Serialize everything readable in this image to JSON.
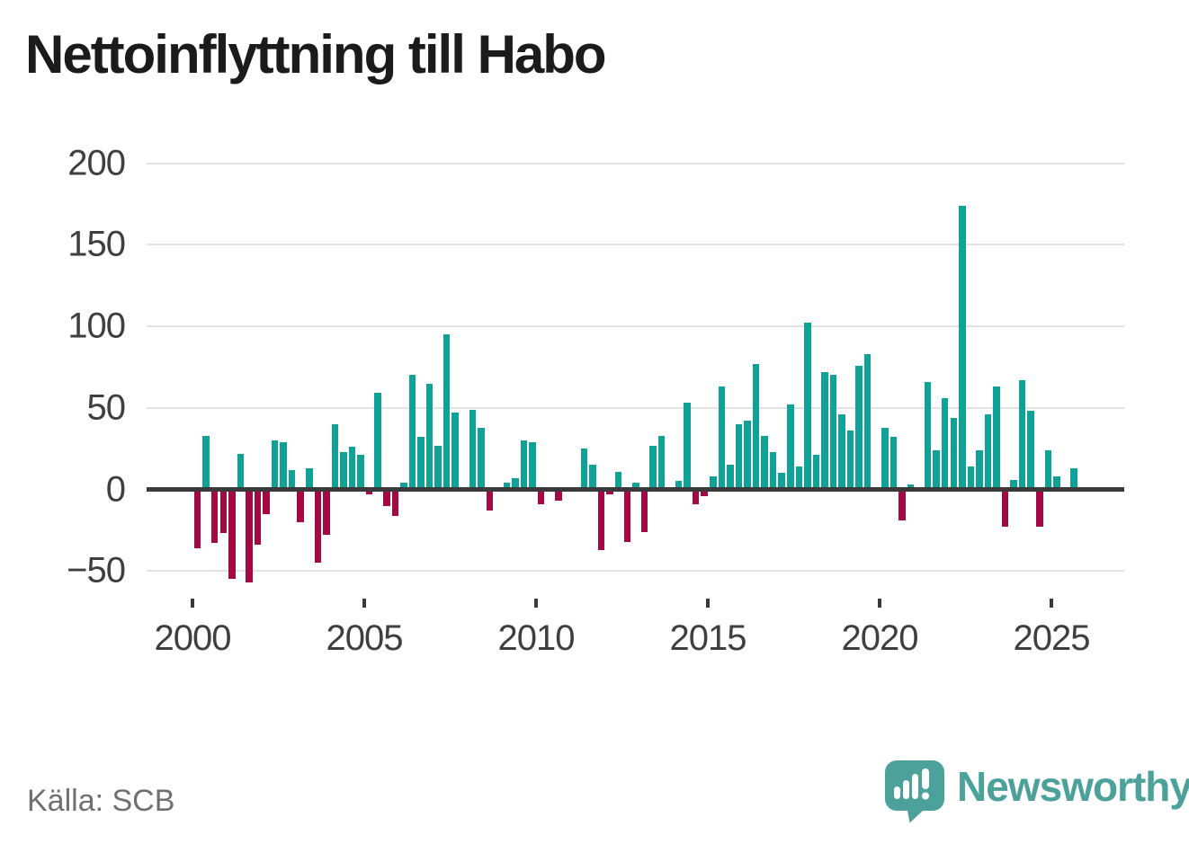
{
  "title": "Nettoinflyttning till Habo",
  "footer": {
    "source": "Källa: SCB",
    "brand": "Newsworthy"
  },
  "colors": {
    "positive_bar": "#10a296",
    "negative_bar": "#a30a44",
    "axis": "#3a3a3a",
    "grid": "#e2e2e2",
    "tick_label": "#3f3f3f",
    "source_text": "#707070",
    "brand_teal": "#4ca29b",
    "title_text": "#1b1b1b"
  },
  "chart_data": {
    "type": "bar",
    "title": "Nettoinflyttning till Habo",
    "xlabel": "",
    "ylabel": "",
    "frequency": "quarterly",
    "start": "2000Q1",
    "end": "2025Q3",
    "ylim": [
      -75,
      215
    ],
    "grid": true,
    "y_ticks": [
      "200",
      "150",
      "100",
      "50",
      "0",
      "−50"
    ],
    "y_tick_values": [
      200,
      150,
      100,
      50,
      0,
      -50
    ],
    "x_ticks": [
      "2000",
      "2005",
      "2010",
      "2015",
      "2020",
      "2025"
    ],
    "x_tick_years": [
      2000,
      2005,
      2010,
      2015,
      2020,
      2025
    ],
    "categories": [
      "2000Q1",
      "2000Q2",
      "2000Q3",
      "2000Q4",
      "2001Q1",
      "2001Q2",
      "2001Q3",
      "2001Q4",
      "2002Q1",
      "2002Q2",
      "2002Q3",
      "2002Q4",
      "2003Q1",
      "2003Q2",
      "2003Q3",
      "2003Q4",
      "2004Q1",
      "2004Q2",
      "2004Q3",
      "2004Q4",
      "2005Q1",
      "2005Q2",
      "2005Q3",
      "2005Q4",
      "2006Q1",
      "2006Q2",
      "2006Q3",
      "2006Q4",
      "2007Q1",
      "2007Q2",
      "2007Q3",
      "2007Q4",
      "2008Q1",
      "2008Q2",
      "2008Q3",
      "2008Q4",
      "2009Q1",
      "2009Q2",
      "2009Q3",
      "2009Q4",
      "2010Q1",
      "2010Q2",
      "2010Q3",
      "2010Q4",
      "2011Q1",
      "2011Q2",
      "2011Q3",
      "2011Q4",
      "2012Q1",
      "2012Q2",
      "2012Q3",
      "2012Q4",
      "2013Q1",
      "2013Q2",
      "2013Q3",
      "2013Q4",
      "2014Q1",
      "2014Q2",
      "2014Q3",
      "2014Q4",
      "2015Q1",
      "2015Q2",
      "2015Q3",
      "2015Q4",
      "2016Q1",
      "2016Q2",
      "2016Q3",
      "2016Q4",
      "2017Q1",
      "2017Q2",
      "2017Q3",
      "2017Q4",
      "2018Q1",
      "2018Q2",
      "2018Q3",
      "2018Q4",
      "2019Q1",
      "2019Q2",
      "2019Q3",
      "2019Q4",
      "2020Q1",
      "2020Q2",
      "2020Q3",
      "2020Q4",
      "2021Q1",
      "2021Q2",
      "2021Q3",
      "2021Q4",
      "2022Q1",
      "2022Q2",
      "2022Q3",
      "2022Q4",
      "2023Q1",
      "2023Q2",
      "2023Q3",
      "2023Q4",
      "2024Q1",
      "2024Q2",
      "2024Q3",
      "2024Q4",
      "2025Q1",
      "2025Q2",
      "2025Q3"
    ],
    "values": [
      -36,
      33,
      -33,
      -27,
      -55,
      22,
      -57,
      -34,
      -15,
      30,
      29,
      12,
      -20,
      13,
      -45,
      -28,
      40,
      23,
      26,
      21,
      -3,
      59,
      -10,
      -16,
      4,
      70,
      32,
      65,
      27,
      95,
      47,
      0,
      49,
      38,
      -13,
      0,
      4,
      7,
      30,
      29,
      -9,
      0,
      -7,
      0,
      0,
      25,
      15,
      -37,
      -3,
      11,
      -32,
      4,
      -26,
      27,
      33,
      0,
      5,
      53,
      -9,
      -4,
      8,
      63,
      15,
      40,
      42,
      77,
      33,
      23,
      10,
      52,
      14,
      102,
      21,
      72,
      70,
      46,
      36,
      76,
      83,
      0,
      38,
      32,
      -19,
      3,
      0,
      66,
      24,
      56,
      44,
      174,
      14,
      24,
      46,
      63,
      -23,
      6,
      67,
      48,
      -23,
      24,
      8,
      0,
      13
    ]
  }
}
